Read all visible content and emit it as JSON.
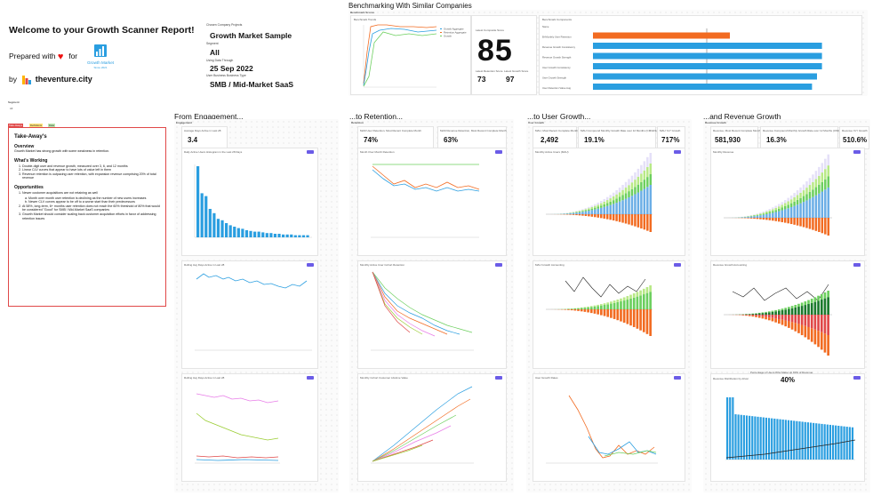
{
  "header": {
    "title": "Welcome to your Growth Scanner Report!",
    "prepared_with": "Prepared with",
    "for": "for",
    "by": "by",
    "brand": "theventure.city",
    "logo_text": "Growth Market",
    "logo_since": "Since 2021"
  },
  "filters": {
    "company_label": "Chosen Company Projects",
    "company_value": "Growth Market Sample",
    "segment_label": "Segment",
    "segment_value": "All",
    "date_label": "Using Data Through",
    "date_value": "25 Sep 2022",
    "model_label": "User Business Business Type",
    "model_value": "SMB / Mid-Market SaaS"
  },
  "benchmark": {
    "title": "Benchmarking With Similar Companies",
    "subtitle": "Benchmark Scores",
    "trends_label": "Benchmark Trends",
    "legend": [
      "Growth Aggregate",
      "Retention Aggregate",
      "Growth"
    ],
    "latest_label": "Latest Composite Score",
    "score": "85",
    "retention_label": "Latest Retention Score",
    "retention_value": "73",
    "growth_label": "Latest Growth Score",
    "growth_value": "97",
    "components_label": "Benchmark Components",
    "components": [
      "Name",
      "Bi-Monthly User Retention",
      "Revenue Growth Consistency",
      "Revenue Growth Strength",
      "User Growth Consistency",
      "User Growth Strength",
      "User Retention Value Aug"
    ],
    "component_scores": [
      55,
      92,
      92,
      92,
      90,
      88
    ]
  },
  "segment_tag": {
    "label": "Segment",
    "value": "All"
  },
  "tags": [
    "Take-Aways",
    "Definitions",
    "Data"
  ],
  "takeaways": {
    "title": "Take-Away's",
    "overview_h": "Overview",
    "overview": "Growth Market has strong growth with some weakness in retention.",
    "working_h": "What's Working",
    "working": [
      "Double-digit user and revenue growth, measured over 3, 6, and 12 months",
      "Linear CLV curves that appear to have lots of value left in them",
      "Revenue retention is outpacing user retention, with expansion revenue comprising 20% of total revenue"
    ],
    "opps_h": "Opportunities",
    "opp1": "Newer customer acquisitions are not retaining as well",
    "opp1a": "Month over month user retention is declining as the number of new users increases",
    "opp1b": "Newer CLV curves appear to be off to a worse start than their predecessors",
    "opp2": "At 58%, long-term, 6+ months user retention does not reach the 60% threshold of 80% that would be considered \"Good\" for SMB / Mid-Market SaaS companies",
    "opp3": "Growth Market should consider scaling back customer acquisition efforts in favor of addressing retention issues"
  },
  "sections": {
    "engagement": "From Engagement...",
    "retention": "...to Retention...",
    "user_growth": "...to User Growth...",
    "revenue": "...and Revenue Growth"
  },
  "engagement": {
    "label": "Engagement",
    "kpi_label": "Average Days Active in Last 28",
    "kpi": "3.4",
    "c1": "Daily Active Users Histogram in the Last 28 Days",
    "c2": "Rolling Avg Days Active in Last 28",
    "c3": "Rolling Avg Days Active in Last 28",
    "hist_values": [
      100,
      62,
      58,
      40,
      34,
      26,
      24,
      20,
      17,
      15,
      13,
      12,
      10,
      9,
      8,
      8,
      7,
      6,
      6,
      5,
      5,
      4,
      4,
      4,
      3,
      3,
      3,
      3
    ]
  },
  "retention": {
    "label": "Retention",
    "kpi1_label": "MoM User Retention, Most Recent Complete Month",
    "kpi1": "74%",
    "kpi2_label": "MoM Revenue Retention, Most Recent Complete Month",
    "kpi2": "63%",
    "c1": "Month Over Month Retention",
    "c2": "Monthly Active User Cohort Retention",
    "c3": "Monthly Cohort Customer Lifetime Value"
  },
  "user_growth": {
    "label": "User Growth",
    "kpi1_label": "MAU, Most Recent Complete Month",
    "kpi1": "2,492",
    "kpi2_label": "MAU Compound Monthly Growth Rate over 12 Months (CMGR12)",
    "kpi2": "19.1%",
    "kpi3_label": "MAU YoY Growth",
    "kpi3": "717%",
    "c1": "Monthly Active Users (MAU)",
    "c2": "MAU Growth Accounting",
    "c3": "User Growth Rates"
  },
  "revenue": {
    "label": "Revenue Growth",
    "kpi1_label": "Revenue, Most Recent Complete Month",
    "kpi1": "581,930",
    "kpi2_label": "Revenue Compound Monthly Growth Rate over 12 Months (CMGR12)",
    "kpi2": "16.3%",
    "kpi3_label": "Revenue YoY Growth",
    "kpi3": "510.6%",
    "c1": "Monthly Revenue",
    "c2": "Revenue Growth Accounting",
    "c3_top": "Percentage of Users Who Make Up 80% of Revenue",
    "pct": "40%",
    "c3": "Revenue Distribution by driver"
  },
  "colors": {
    "accent": "#6b5ce7",
    "blue": "#2a9ee0",
    "orange": "#f26b21",
    "green": "#6ccf5e",
    "red": "#e04848"
  }
}
